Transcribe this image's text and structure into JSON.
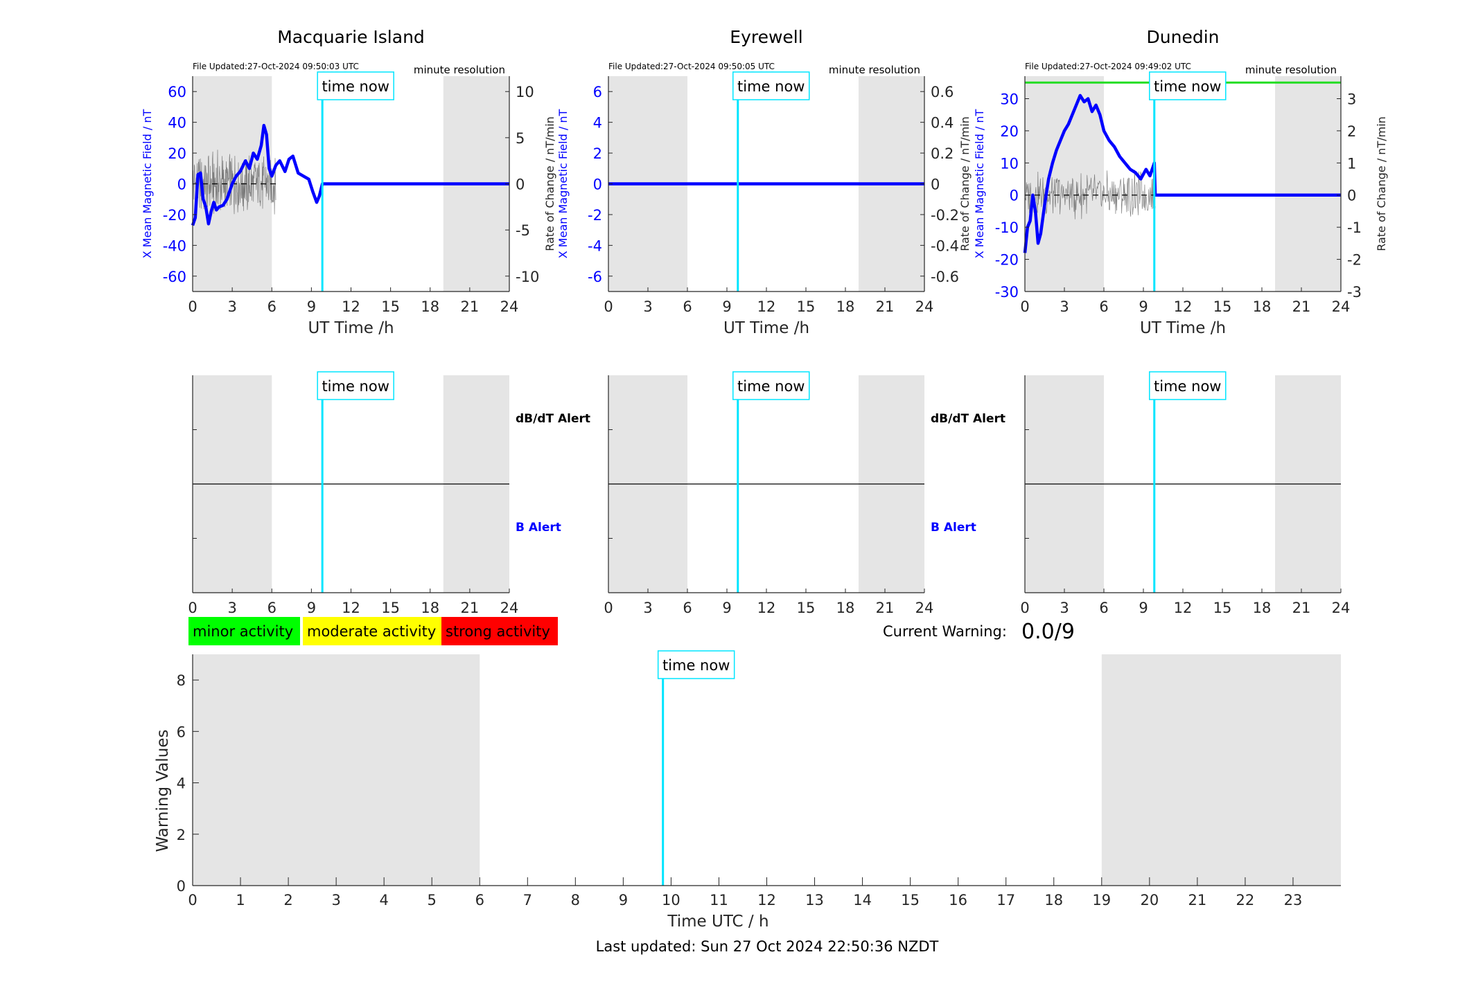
{
  "colors": {
    "field": "#0000ff",
    "rate": "#555555",
    "time_now": "#00e5ff",
    "night": "#e5e5e5",
    "threshold": "#22dd22",
    "minor": "#00ff00",
    "moderate": "#ffff00",
    "strong": "#ff0000"
  },
  "time_now_label": "time now",
  "chart_data": [
    {
      "type": "line",
      "title": "Macquarie Island",
      "file_updated": "File Updated:27-Oct-2024 09:50:03 UTC",
      "resolution": "minute resolution",
      "xlabel": "UT Time /h",
      "ylabel": "X Mean Magnetic Field / nT",
      "y2label": "Rate of Change / nT/min",
      "xlim": [
        0,
        24
      ],
      "xticks": [
        0,
        3,
        6,
        9,
        12,
        15,
        18,
        21,
        24
      ],
      "ylim": [
        -70,
        70
      ],
      "yticks": [
        -60,
        -40,
        -20,
        0,
        20,
        40,
        60
      ],
      "y2lim": [
        -11.667,
        11.667
      ],
      "y2ticks": [
        -10,
        -5,
        0,
        5,
        10
      ],
      "night": [
        [
          0,
          6
        ],
        [
          19,
          24
        ]
      ],
      "time_now": 9.83,
      "field_series": {
        "name": "X Mean Magnetic Field",
        "x": [
          0,
          0.2,
          0.4,
          0.6,
          0.8,
          1.0,
          1.2,
          1.4,
          1.6,
          1.8,
          2.0,
          2.3,
          2.6,
          3.0,
          3.3,
          3.6,
          4.0,
          4.3,
          4.6,
          4.9,
          5.2,
          5.4,
          5.6,
          5.8,
          6.0,
          6.3,
          6.6,
          7.0,
          7.3,
          7.6,
          8.0,
          8.4,
          8.8,
          9.1,
          9.4,
          9.6,
          9.83,
          24
        ],
        "values": [
          -27,
          -22,
          6,
          7,
          -10,
          -15,
          -26,
          -18,
          -12,
          -17,
          -15,
          -14,
          -10,
          0,
          5,
          8,
          15,
          10,
          20,
          16,
          25,
          38,
          32,
          10,
          5,
          12,
          15,
          8,
          16,
          18,
          7,
          5,
          3,
          -5,
          -12,
          -8,
          0,
          0
        ]
      },
      "rate_series": {
        "name": "Rate of Change",
        "x": [
          0,
          6.3
        ],
        "amplitude": 4.0
      }
    },
    {
      "type": "line",
      "title": "Eyrewell",
      "file_updated": "File Updated:27-Oct-2024 09:50:05 UTC",
      "resolution": "minute resolution",
      "xlabel": "UT Time /h",
      "ylabel": "X Mean Magnetic Field / nT",
      "y2label": "Rate of Change / nT/min",
      "xlim": [
        0,
        24
      ],
      "xticks": [
        0,
        3,
        6,
        9,
        12,
        15,
        18,
        21,
        24
      ],
      "ylim": [
        -7,
        7
      ],
      "yticks": [
        -6,
        -4,
        -2,
        0,
        2,
        4,
        6
      ],
      "y2lim": [
        -0.7,
        0.7
      ],
      "y2ticks": [
        -0.6,
        -0.4,
        -0.2,
        0,
        0.2,
        0.4,
        0.6
      ],
      "night": [
        [
          0,
          6
        ],
        [
          19,
          24
        ]
      ],
      "time_now": 9.83,
      "field_series": {
        "name": "X Mean Magnetic Field",
        "x": [
          0,
          24
        ],
        "values": [
          0,
          0
        ]
      }
    },
    {
      "type": "line",
      "title": "Dunedin",
      "file_updated": "File Updated:27-Oct-2024 09:49:02 UTC",
      "resolution": "minute resolution",
      "xlabel": "UT Time /h",
      "ylabel": "X Mean Magnetic Field / nT",
      "y2label": "Rate of Change / nT/min",
      "xlim": [
        0,
        24
      ],
      "xticks": [
        0,
        3,
        6,
        9,
        12,
        15,
        18,
        21,
        24
      ],
      "ylim": [
        -30,
        37
      ],
      "yticks": [
        -30,
        -20,
        -10,
        0,
        10,
        20,
        30
      ],
      "y2lim": [
        -3,
        3.7
      ],
      "y2ticks": [
        -3,
        -2,
        -1,
        0,
        1,
        2,
        3
      ],
      "night": [
        [
          0,
          6
        ],
        [
          19,
          24
        ]
      ],
      "time_now": 9.83,
      "threshold": 35,
      "field_series": {
        "name": "X Mean Magnetic Field",
        "x": [
          0,
          0.2,
          0.4,
          0.6,
          0.8,
          1.0,
          1.2,
          1.5,
          1.8,
          2.1,
          2.4,
          2.7,
          3.0,
          3.3,
          3.6,
          3.9,
          4.2,
          4.5,
          4.8,
          5.1,
          5.4,
          5.7,
          6.0,
          6.4,
          6.8,
          7.2,
          7.6,
          8.0,
          8.4,
          8.8,
          9.2,
          9.5,
          9.83,
          9.9,
          24
        ],
        "values": [
          -18,
          -10,
          -8,
          0,
          -5,
          -15,
          -12,
          -3,
          5,
          10,
          14,
          17,
          20,
          22,
          25,
          28,
          31,
          29,
          30,
          26,
          28,
          25,
          20,
          17,
          15,
          12,
          10,
          8,
          7,
          5,
          8,
          6,
          10,
          0,
          0
        ]
      },
      "rate_series": {
        "name": "Rate of Change",
        "x": [
          0,
          9.9
        ],
        "amplitude": 0.8
      }
    },
    {
      "type": "line",
      "title": "",
      "xlim": [
        0,
        24
      ],
      "xticks": [
        0,
        3,
        6,
        9,
        12,
        15,
        18,
        21,
        24
      ],
      "night": [
        [
          0,
          6
        ],
        [
          19,
          24
        ]
      ],
      "time_now": 9.83,
      "upper_label": "dB/dT Alert",
      "lower_label": "B Alert",
      "series": []
    },
    {
      "type": "line",
      "title": "",
      "xlim": [
        0,
        24
      ],
      "xticks": [
        0,
        3,
        6,
        9,
        12,
        15,
        18,
        21,
        24
      ],
      "night": [
        [
          0,
          6
        ],
        [
          19,
          24
        ]
      ],
      "time_now": 9.83,
      "upper_label": "dB/dT Alert",
      "lower_label": "B Alert",
      "series": []
    },
    {
      "type": "line",
      "title": "",
      "xlim": [
        0,
        24
      ],
      "xticks": [
        0,
        3,
        6,
        9,
        12,
        15,
        18,
        21,
        24
      ],
      "night": [
        [
          0,
          6
        ],
        [
          19,
          24
        ]
      ],
      "time_now": 9.83,
      "series": []
    },
    {
      "type": "bar",
      "title": "",
      "xlabel": "Time UTC / h",
      "ylabel": "Warning Values",
      "xlim": [
        0,
        24
      ],
      "xticks": [
        0,
        1,
        2,
        3,
        4,
        5,
        6,
        7,
        8,
        9,
        10,
        11,
        12,
        13,
        14,
        15,
        16,
        17,
        18,
        19,
        20,
        21,
        22,
        23
      ],
      "ylim": [
        0,
        9
      ],
      "yticks": [
        0,
        2,
        4,
        6,
        8
      ],
      "night": [
        [
          0,
          6
        ],
        [
          19,
          24
        ]
      ],
      "time_now": 9.83,
      "values": []
    }
  ],
  "legend": {
    "minor": "minor activity",
    "moderate": "moderate activity",
    "strong": "strong activity"
  },
  "warning": {
    "label": "Current Warning:",
    "value": "0.0/9"
  },
  "footer": "Last updated: Sun 27 Oct 2024 22:50:36 NZDT"
}
